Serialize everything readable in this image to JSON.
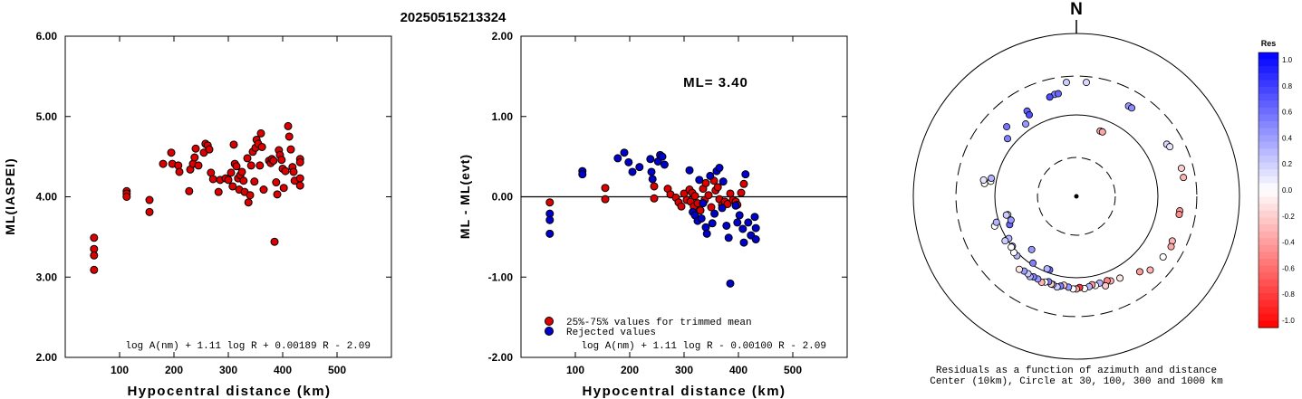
{
  "title": "20250515213324",
  "chart_data": [
    {
      "type": "scatter",
      "id": "ml-vs-distance",
      "xlabel": "Hypocentral distance (km)",
      "ylabel": "ML(IASPEI)",
      "xlim": [
        0,
        600
      ],
      "ylim": [
        2.0,
        6.0
      ],
      "x_ticks": [
        "100",
        "200",
        "300",
        "400",
        "500"
      ],
      "y_ticks": [
        "2.00",
        "3.00",
        "4.00",
        "5.00",
        "6.00"
      ],
      "formula": "log A(nm) + 1.11 log R + 0.00189 R - 2.09",
      "series": [
        {
          "color": "#dd0000",
          "points": [
            [
              53,
              3.49
            ],
            [
              53,
              3.35
            ],
            [
              53,
              3.27
            ],
            [
              53,
              3.09
            ],
            [
              113,
              4.07
            ],
            [
              113,
              4.04
            ],
            [
              113,
              4.0
            ],
            [
              155,
              3.96
            ],
            [
              155,
              3.81
            ],
            [
              180,
              4.41
            ],
            [
              195,
              4.55
            ],
            [
              197,
              4.41
            ],
            [
              208,
              4.39
            ],
            [
              210,
              4.31
            ],
            [
              228,
              4.07
            ],
            [
              230,
              4.34
            ],
            [
              235,
              4.41
            ],
            [
              238,
              4.49
            ],
            [
              240,
              4.6
            ],
            [
              245,
              4.39
            ],
            [
              255,
              4.55
            ],
            [
              258,
              4.66
            ],
            [
              262,
              4.64
            ],
            [
              265,
              4.59
            ],
            [
              268,
              4.3
            ],
            [
              272,
              4.22
            ],
            [
              282,
              4.06
            ],
            [
              285,
              4.21
            ],
            [
              295,
              4.23
            ],
            [
              300,
              4.21
            ],
            [
              305,
              4.3
            ],
            [
              308,
              4.13
            ],
            [
              310,
              4.65
            ],
            [
              312,
              4.41
            ],
            [
              315,
              4.38
            ],
            [
              318,
              4.23
            ],
            [
              320,
              4.09
            ],
            [
              322,
              4.27
            ],
            [
              325,
              4.31
            ],
            [
              328,
              4.2
            ],
            [
              330,
              4.06
            ],
            [
              335,
              4.48
            ],
            [
              337,
              3.93
            ],
            [
              340,
              4.02
            ],
            [
              342,
              4.39
            ],
            [
              345,
              4.56
            ],
            [
              348,
              4.19
            ],
            [
              350,
              4.61
            ],
            [
              352,
              4.71
            ],
            [
              355,
              4.66
            ],
            [
              358,
              4.39
            ],
            [
              360,
              4.79
            ],
            [
              362,
              4.62
            ],
            [
              365,
              4.09
            ],
            [
              375,
              4.45
            ],
            [
              378,
              4.42
            ],
            [
              380,
              4.47
            ],
            [
              383,
              4.45
            ],
            [
              385,
              3.44
            ],
            [
              388,
              4.18
            ],
            [
              390,
              4.03
            ],
            [
              393,
              4.58
            ],
            [
              395,
              4.52
            ],
            [
              398,
              4.46
            ],
            [
              400,
              4.35
            ],
            [
              402,
              4.11
            ],
            [
              405,
              4.32
            ],
            [
              410,
              4.88
            ],
            [
              412,
              4.75
            ],
            [
              415,
              4.59
            ],
            [
              418,
              4.37
            ],
            [
              420,
              4.31
            ],
            [
              422,
              4.2
            ],
            [
              432,
              4.47
            ],
            [
              432,
              4.43
            ],
            [
              432,
              4.23
            ],
            [
              432,
              4.14
            ]
          ]
        }
      ]
    },
    {
      "type": "scatter",
      "id": "residual-vs-distance",
      "xlabel": "Hypocentral distance (km)",
      "ylabel": "ML - ML(evt)",
      "xlim": [
        0,
        600
      ],
      "ylim": [
        -2.0,
        2.0
      ],
      "x_ticks": [
        "100",
        "200",
        "300",
        "400",
        "500"
      ],
      "y_ticks": [
        "-2.00",
        "-1.00",
        "0.00",
        "1.00",
        "2.00"
      ],
      "ml_text": "ML= 3.40",
      "formula": "log A(nm) + 1.11 log R - 0.00100 R - 2.09",
      "legend": [
        "25%-75% values for trimmed mean",
        "Rejected values"
      ],
      "series": [
        {
          "color": "#dd0000",
          "points": [
            [
              53,
              -0.07
            ],
            [
              155,
              0.11
            ],
            [
              155,
              -0.03
            ],
            [
              245,
              0.13
            ],
            [
              245,
              -0.02
            ],
            [
              270,
              0.1
            ],
            [
              275,
              0.03
            ],
            [
              285,
              -0.01
            ],
            [
              290,
              -0.07
            ],
            [
              295,
              -0.12
            ],
            [
              300,
              0.04
            ],
            [
              305,
              -0.04
            ],
            [
              310,
              0.09
            ],
            [
              312,
              -0.06
            ],
            [
              315,
              0.05
            ],
            [
              318,
              -0.12
            ],
            [
              320,
              0.01
            ],
            [
              325,
              -0.08
            ],
            [
              330,
              -0.17
            ],
            [
              335,
              0.1
            ],
            [
              338,
              -0.04
            ],
            [
              340,
              0.17
            ],
            [
              345,
              0.02
            ],
            [
              350,
              -0.13
            ],
            [
              355,
              0.2
            ],
            [
              358,
              0.08
            ],
            [
              362,
              0.12
            ],
            [
              365,
              -0.03
            ],
            [
              370,
              -0.1
            ],
            [
              375,
              -0.06
            ],
            [
              380,
              -0.09
            ],
            [
              385,
              0.04
            ],
            [
              390,
              -0.04
            ],
            [
              395,
              -0.06
            ],
            [
              398,
              -0.1
            ],
            [
              405,
              0.05
            ],
            [
              410,
              0.16
            ]
          ]
        },
        {
          "color": "#0000cc",
          "points": [
            [
              53,
              -0.21
            ],
            [
              53,
              -0.29
            ],
            [
              53,
              -0.46
            ],
            [
              113,
              0.32
            ],
            [
              113,
              0.28
            ],
            [
              178,
              0.48
            ],
            [
              190,
              0.55
            ],
            [
              198,
              0.43
            ],
            [
              205,
              0.31
            ],
            [
              218,
              0.37
            ],
            [
              238,
              0.47
            ],
            [
              240,
              0.31
            ],
            [
              242,
              0.22
            ],
            [
              252,
              0.44
            ],
            [
              256,
              0.52
            ],
            [
              260,
              0.5
            ],
            [
              264,
              0.4
            ],
            [
              310,
              0.33
            ],
            [
              316,
              -0.19
            ],
            [
              320,
              -0.23
            ],
            [
              325,
              -0.3
            ],
            [
              328,
              0.21
            ],
            [
              332,
              -0.27
            ],
            [
              335,
              -0.08
            ],
            [
              340,
              -0.38
            ],
            [
              342,
              -0.46
            ],
            [
              348,
              0.26
            ],
            [
              352,
              -0.33
            ],
            [
              356,
              -0.21
            ],
            [
              360,
              0.32
            ],
            [
              365,
              0.36
            ],
            [
              370,
              -0.14
            ],
            [
              372,
              0.19
            ],
            [
              378,
              -0.36
            ],
            [
              382,
              -0.51
            ],
            [
              385,
              -1.08
            ],
            [
              395,
              -0.11
            ],
            [
              398,
              -0.32
            ],
            [
              402,
              -0.23
            ],
            [
              408,
              -0.4
            ],
            [
              410,
              -0.57
            ],
            [
              413,
              0.28
            ],
            [
              418,
              -0.32
            ],
            [
              423,
              -0.48
            ],
            [
              430,
              -0.25
            ],
            [
              432,
              -0.39
            ],
            [
              432,
              -0.53
            ]
          ]
        }
      ]
    },
    {
      "type": "scatter",
      "id": "azimuth-residual-map",
      "north_label": "N",
      "caption_line1": "Residuals as a function of azimuth and distance",
      "caption_line2": "Center (10km), Circle at 30, 100, 300 and 1000 km",
      "colorbar_title": "Res",
      "colorbar_ticks": [
        "1.0",
        "0.8",
        "0.6",
        "0.4",
        "0.2",
        "0.0",
        "-0.2",
        "-0.4",
        "-0.6",
        "-0.8",
        "-1.0"
      ],
      "stations": [
        [
          -50,
          62,
          0.5
        ],
        [
          -45,
          68,
          0.55
        ],
        [
          -30,
          68,
          0.6
        ],
        [
          -5,
          79,
          0.2
        ],
        [
          5,
          79,
          0.15
        ],
        [
          30,
          72,
          0.4
        ],
        [
          32,
          72,
          0.45
        ],
        [
          60,
          72,
          0.15
        ],
        [
          62,
          73,
          0.1
        ],
        [
          75,
          75,
          -0.2
        ],
        [
          80,
          75,
          -0.3
        ],
        [
          20,
          48,
          -0.3
        ],
        [
          22,
          48,
          -0.35
        ],
        [
          98,
          72,
          -0.4
        ],
        [
          100,
          72,
          -0.45
        ],
        [
          115,
          73,
          -0.3
        ],
        [
          118,
          74,
          -0.35
        ],
        [
          125,
          73,
          0.0
        ],
        [
          135,
          72,
          -0.3
        ],
        [
          140,
          68,
          -0.4
        ],
        [
          152,
          64,
          -0.1
        ],
        [
          158,
          63,
          -0.3
        ],
        [
          160,
          62,
          -0.5
        ],
        [
          162,
          65,
          -0.2
        ],
        [
          165,
          62,
          0.3
        ],
        [
          168,
          63,
          0.0
        ],
        [
          170,
          62,
          -0.4
        ],
        [
          172,
          63,
          0.3
        ],
        [
          175,
          64,
          0.0
        ],
        [
          178,
          63,
          -0.8
        ],
        [
          180,
          64,
          -0.3
        ],
        [
          182,
          64,
          0.0
        ],
        [
          185,
          63,
          0.4
        ],
        [
          188,
          62,
          -0.2
        ],
        [
          190,
          63,
          0.5
        ],
        [
          192,
          64,
          0.2
        ],
        [
          195,
          63,
          0.3
        ],
        [
          196,
          63,
          -0.2
        ],
        [
          198,
          62,
          0.5
        ],
        [
          200,
          63,
          0.0
        ],
        [
          202,
          64,
          -0.3
        ],
        [
          205,
          63,
          0.4
        ],
        [
          208,
          63,
          0.5
        ],
        [
          210,
          64,
          0.3
        ],
        [
          212,
          63,
          0.2
        ],
        [
          215,
          63,
          0.4
        ],
        [
          218,
          64,
          -0.1
        ],
        [
          200,
          54,
          0.6
        ],
        [
          202,
          54,
          0.3
        ],
        [
          213,
          55,
          0.5
        ],
        [
          225,
          58,
          0.3
        ],
        [
          228,
          58,
          0.0
        ],
        [
          232,
          56,
          0.5
        ],
        [
          238,
          55,
          0.3
        ],
        [
          232,
          57,
          0.0
        ],
        [
          238,
          58,
          0.2
        ],
        [
          220,
          48,
          0.4
        ],
        [
          250,
          60,
          0.0
        ],
        [
          252,
          58,
          0.3
        ],
        [
          255,
          49,
          0.0
        ],
        [
          255,
          50,
          0.2
        ],
        [
          278,
          64,
          0.0
        ],
        [
          280,
          65,
          0.1
        ],
        [
          247,
          50,
          0.6
        ],
        [
          250,
          48,
          0.4
        ],
        [
          280,
          60,
          0.0
        ],
        [
          282,
          60,
          0.3
        ],
        [
          325,
          61,
          0.4
        ],
        [
          330,
          65,
          0.7
        ],
        [
          348,
          72,
          0.5
        ],
        [
          350,
          72,
          0.6
        ],
        [
          345,
          71,
          0.7
        ]
      ]
    }
  ]
}
